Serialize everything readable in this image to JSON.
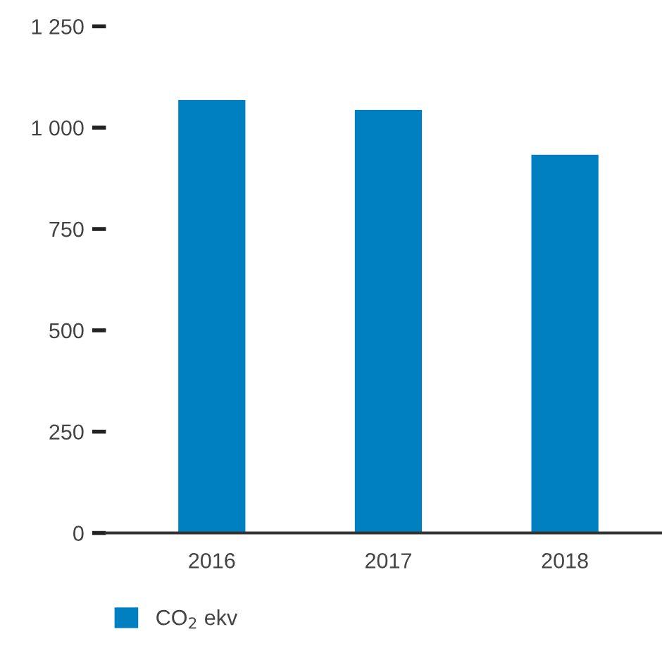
{
  "chart_data": {
    "type": "bar",
    "categories": [
      "2016",
      "2017",
      "2018"
    ],
    "series": [
      {
        "name": "CO$_{2}$ ekv",
        "color": "#0080c0",
        "values": [
          1068,
          1044,
          933
        ]
      }
    ],
    "ylim": [
      0,
      1250
    ],
    "yticks": [
      0,
      250,
      500,
      750,
      {
        "value": 1000,
        "label": "1 000"
      },
      {
        "value": 1250,
        "label": "1 250"
      }
    ],
    "grid": false,
    "legend": "bottom left"
  }
}
